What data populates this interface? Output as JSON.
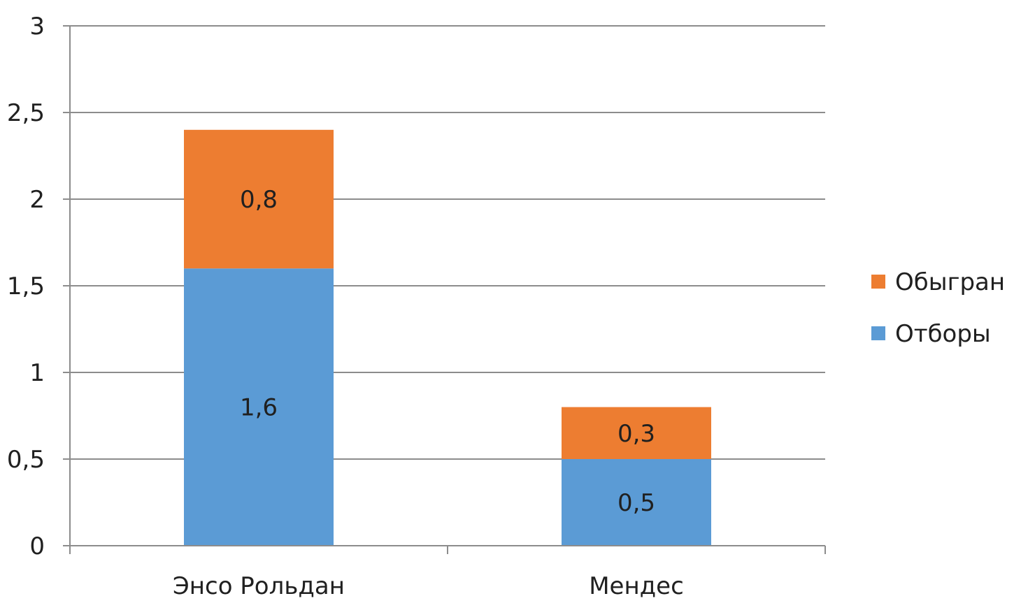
{
  "chart_data": {
    "type": "bar",
    "stacked": true,
    "categories": [
      "Энсо Рольдан",
      "Мендес"
    ],
    "series": [
      {
        "name": "Отборы",
        "values": [
          1.6,
          0.5
        ],
        "labels": [
          "1,6",
          "0,5"
        ],
        "color": "#5b9bd5"
      },
      {
        "name": "Обыгран",
        "values": [
          0.8,
          0.3
        ],
        "labels": [
          "0,8",
          "0,3"
        ],
        "color": "#ed7d31"
      }
    ],
    "y_ticks": [
      0,
      0.5,
      1,
      1.5,
      2,
      2.5,
      3
    ],
    "y_tick_labels": [
      "0",
      "0,5",
      "1",
      "1,5",
      "2",
      "2,5",
      "3"
    ],
    "ylim": [
      0,
      3
    ],
    "grid": true,
    "legend_position": "right",
    "legend_order": [
      "Обыгран",
      "Отборы"
    ],
    "title": "",
    "xlabel": "",
    "ylabel": ""
  }
}
